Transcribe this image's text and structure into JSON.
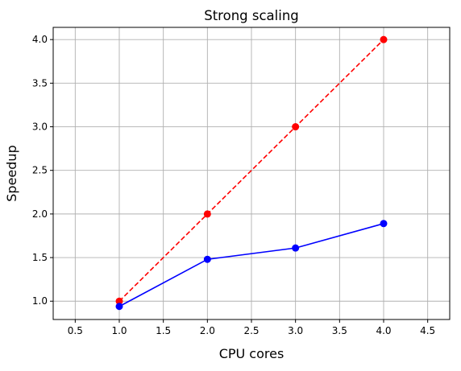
{
  "chart_data": {
    "type": "line",
    "title": "Strong scaling",
    "xlabel": "CPU cores",
    "ylabel": "Speedup",
    "xlim": [
      0.25,
      4.75
    ],
    "ylim": [
      0.79,
      4.14
    ],
    "xticks": [
      0.5,
      1.0,
      1.5,
      2.0,
      2.5,
      3.0,
      3.5,
      4.0,
      4.5
    ],
    "xtick_labels": [
      "0.5",
      "1.0",
      "1.5",
      "2.0",
      "2.5",
      "3.0",
      "3.5",
      "4.0",
      "4.5"
    ],
    "yticks": [
      1.0,
      1.5,
      2.0,
      2.5,
      3.0,
      3.5,
      4.0
    ],
    "ytick_labels": [
      "1.0",
      "1.5",
      "2.0",
      "2.5",
      "3.0",
      "3.5",
      "4.0"
    ],
    "grid": true,
    "series": [
      {
        "x": [
          1,
          2,
          3,
          4
        ],
        "values": [
          1.0,
          2.0,
          3.0,
          4.0
        ],
        "color": "#ff0000",
        "line_style": "dashed",
        "marker": "circle"
      },
      {
        "x": [
          1,
          2,
          3,
          4
        ],
        "values": [
          0.94,
          1.48,
          1.61,
          1.89
        ],
        "color": "#0000ff",
        "line_style": "solid",
        "marker": "circle"
      }
    ]
  }
}
